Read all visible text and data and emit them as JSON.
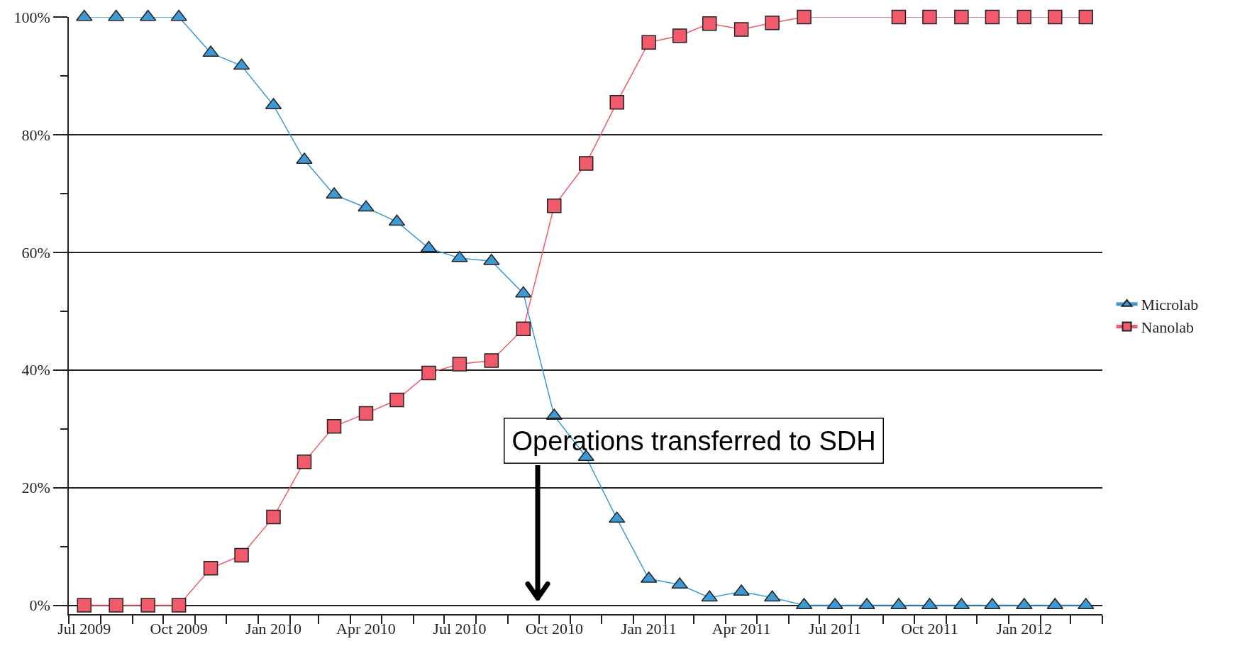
{
  "chart_data": {
    "type": "line",
    "x": [
      "2009-07-16",
      "2009-08-16",
      "2009-09-16",
      "2009-10-16",
      "2009-11-16",
      "2009-12-16",
      "2010-01-16",
      "2010-02-15",
      "2010-03-16",
      "2010-04-16",
      "2010-05-16",
      "2010-06-16",
      "2010-07-16",
      "2010-08-16",
      "2010-09-16",
      "2010-10-16",
      "2010-11-16",
      "2010-12-16",
      "2011-01-16",
      "2011-02-15",
      "2011-03-16",
      "2011-04-16",
      "2011-05-16",
      "2011-06-16",
      "2011-07-16",
      "2011-08-16",
      "2011-09-16",
      "2011-10-16",
      "2011-11-16",
      "2011-12-16",
      "2012-01-16",
      "2012-02-15",
      "2012-03-16"
    ],
    "series": [
      {
        "name": "Microlab",
        "color": "#3e9ad4",
        "marker": "triangle",
        "values": [
          100,
          100,
          100,
          100,
          93.9,
          91.7,
          85,
          75.7,
          69.8,
          67.6,
          65.2,
          60.7,
          59,
          58.5,
          53,
          32.2,
          25.2,
          14.7,
          4.5,
          3.5,
          1.3,
          2.3,
          1.3,
          0,
          0,
          0,
          0,
          0,
          0,
          0,
          0,
          0,
          0
        ]
      },
      {
        "name": "Nanolab",
        "color": "#f05a6b",
        "marker": "square",
        "values": [
          0,
          0,
          0,
          0,
          6.3,
          8.5,
          15,
          24.4,
          30.4,
          32.6,
          34.9,
          39.5,
          41,
          41.6,
          47,
          67.9,
          75.1,
          85.5,
          95.7,
          96.8,
          98.9,
          97.9,
          99,
          100,
          null,
          null,
          100,
          100,
          100,
          100,
          100,
          100,
          100
        ]
      }
    ],
    "xlim": [
      "2009-07-01",
      "2012-04-01"
    ],
    "xticks": [
      {
        "value": "2009-07-16",
        "label": "Jul 2009"
      },
      {
        "value": "2009-10-16",
        "label": "Oct 2009"
      },
      {
        "value": "2010-01-16",
        "label": "Jan 2010"
      },
      {
        "value": "2010-04-16",
        "label": "Apr 2010"
      },
      {
        "value": "2010-07-16",
        "label": "Jul 2010"
      },
      {
        "value": "2010-10-16",
        "label": "Oct 2010"
      },
      {
        "value": "2011-01-16",
        "label": "Jan 2011"
      },
      {
        "value": "2011-04-16",
        "label": "Apr 2011"
      },
      {
        "value": "2011-07-16",
        "label": "Jul 2011"
      },
      {
        "value": "2011-10-16",
        "label": "Oct 2011"
      },
      {
        "value": "2012-01-16",
        "label": "Jan 2012"
      },
      {
        "value": "2009-07-01",
        "label": null
      },
      {
        "value": "2009-08-01",
        "label": null
      },
      {
        "value": "2009-09-01",
        "label": null
      },
      {
        "value": "2009-10-01",
        "label": null
      },
      {
        "value": "2009-11-01",
        "label": null
      },
      {
        "value": "2009-12-01",
        "label": null
      },
      {
        "value": "2010-01-01",
        "label": null
      },
      {
        "value": "2010-02-01",
        "label": null
      },
      {
        "value": "2010-03-01",
        "label": null
      },
      {
        "value": "2010-04-01",
        "label": null
      },
      {
        "value": "2010-05-01",
        "label": null
      },
      {
        "value": "2010-06-01",
        "label": null
      },
      {
        "value": "2010-07-01",
        "label": null
      },
      {
        "value": "2010-08-01",
        "label": null
      },
      {
        "value": "2010-09-01",
        "label": null
      },
      {
        "value": "2010-10-01",
        "label": null
      },
      {
        "value": "2010-11-01",
        "label": null
      },
      {
        "value": "2010-12-01",
        "label": null
      },
      {
        "value": "2011-01-01",
        "label": null
      },
      {
        "value": "2011-02-01",
        "label": null
      },
      {
        "value": "2011-03-01",
        "label": null
      },
      {
        "value": "2011-04-01",
        "label": null
      },
      {
        "value": "2011-05-01",
        "label": null
      },
      {
        "value": "2011-06-01",
        "label": null
      },
      {
        "value": "2011-07-01",
        "label": null
      },
      {
        "value": "2011-08-01",
        "label": null
      },
      {
        "value": "2011-09-01",
        "label": null
      },
      {
        "value": "2011-10-01",
        "label": null
      },
      {
        "value": "2011-11-01",
        "label": null
      },
      {
        "value": "2011-12-01",
        "label": null
      },
      {
        "value": "2012-01-01",
        "label": null
      },
      {
        "value": "2012-02-01",
        "label": null
      },
      {
        "value": "2012-03-01",
        "label": null
      },
      {
        "value": "2012-04-01",
        "label": null
      }
    ],
    "ylim": [
      -1.5,
      100
    ],
    "yticks": [
      {
        "value": 0,
        "label": "0%"
      },
      {
        "value": 10,
        "label": null
      },
      {
        "value": 20,
        "label": "20%"
      },
      {
        "value": 30,
        "label": null
      },
      {
        "value": 40,
        "label": "40%"
      },
      {
        "value": 50,
        "label": null
      },
      {
        "value": 60,
        "label": "60%"
      },
      {
        "value": 70,
        "label": null
      },
      {
        "value": 80,
        "label": "80%"
      },
      {
        "value": 90,
        "label": null
      },
      {
        "value": 100,
        "label": "100%"
      }
    ],
    "grid": "y",
    "legend": "right",
    "line_style": "solid",
    "annotations": [
      "Operations transferred to SDH"
    ]
  }
}
